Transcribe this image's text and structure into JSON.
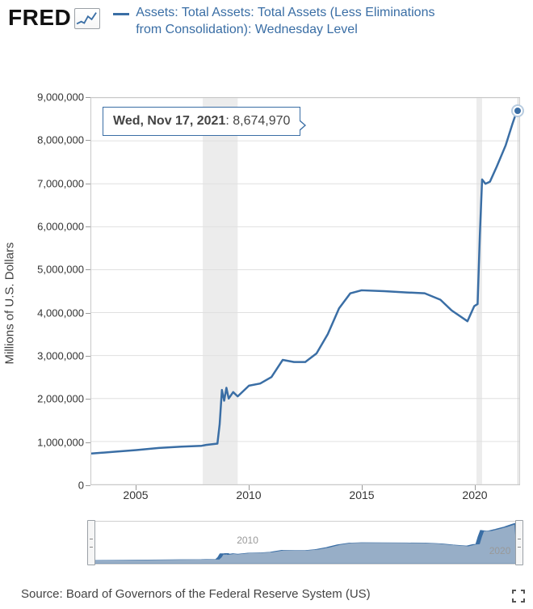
{
  "logo": {
    "text": "FRED"
  },
  "legend": {
    "label": "Assets: Total Assets: Total Assets (Less Eliminations from Consolidation): Wednesday Level",
    "color": "#3a6ea5"
  },
  "tooltip": {
    "date": "Wed, Nov 17, 2021",
    "value": "8,674,970"
  },
  "chart": {
    "type": "line",
    "yaxis_label": "Millions of U.S. Dollars",
    "line_color": "#3a6ea5",
    "line_width": 2.5,
    "background_color": "#ffffff",
    "grid_color": "#e0e0e0",
    "axis_color": "#c9c9c9",
    "tick_fontsize": 13,
    "label_fontsize": 15,
    "recession_color": "#e4e4e4",
    "xlim": [
      2003,
      2022
    ],
    "ylim": [
      0,
      9000000
    ],
    "ytick_step": 1000000,
    "yticks": [
      "0",
      "1,000,000",
      "2,000,000",
      "3,000,000",
      "4,000,000",
      "5,000,000",
      "6,000,000",
      "7,000,000",
      "8,000,000",
      "9,000,000"
    ],
    "xticks": [
      2005,
      2010,
      2015,
      2020
    ],
    "recessions": [
      {
        "start": 2007.95,
        "end": 2009.5
      },
      {
        "start": 2020.1,
        "end": 2020.35
      }
    ],
    "hover_x": 2021.88,
    "hover_y": 8674970,
    "series": [
      [
        2003.0,
        720000
      ],
      [
        2004.0,
        760000
      ],
      [
        2005.0,
        800000
      ],
      [
        2006.0,
        850000
      ],
      [
        2007.0,
        880000
      ],
      [
        2007.9,
        900000
      ],
      [
        2008.1,
        920000
      ],
      [
        2008.6,
        950000
      ],
      [
        2008.7,
        1400000
      ],
      [
        2008.8,
        2200000
      ],
      [
        2008.9,
        1950000
      ],
      [
        2009.0,
        2250000
      ],
      [
        2009.1,
        2000000
      ],
      [
        2009.3,
        2150000
      ],
      [
        2009.5,
        2050000
      ],
      [
        2010.0,
        2300000
      ],
      [
        2010.5,
        2350000
      ],
      [
        2011.0,
        2500000
      ],
      [
        2011.5,
        2900000
      ],
      [
        2012.0,
        2850000
      ],
      [
        2012.5,
        2850000
      ],
      [
        2013.0,
        3050000
      ],
      [
        2013.5,
        3500000
      ],
      [
        2014.0,
        4100000
      ],
      [
        2014.5,
        4450000
      ],
      [
        2015.0,
        4520000
      ],
      [
        2016.0,
        4500000
      ],
      [
        2017.0,
        4470000
      ],
      [
        2017.8,
        4450000
      ],
      [
        2018.5,
        4300000
      ],
      [
        2019.0,
        4050000
      ],
      [
        2019.7,
        3800000
      ],
      [
        2020.0,
        4150000
      ],
      [
        2020.15,
        4200000
      ],
      [
        2020.25,
        5800000
      ],
      [
        2020.35,
        7100000
      ],
      [
        2020.5,
        7000000
      ],
      [
        2020.7,
        7050000
      ],
      [
        2021.0,
        7400000
      ],
      [
        2021.4,
        7900000
      ],
      [
        2021.7,
        8400000
      ],
      [
        2021.88,
        8674970
      ]
    ]
  },
  "minimap": {
    "fill_color": "#97aec7",
    "labels": [
      "2010",
      "2020"
    ]
  },
  "source": "Source: Board of Governors of the Federal Reserve System (US)"
}
